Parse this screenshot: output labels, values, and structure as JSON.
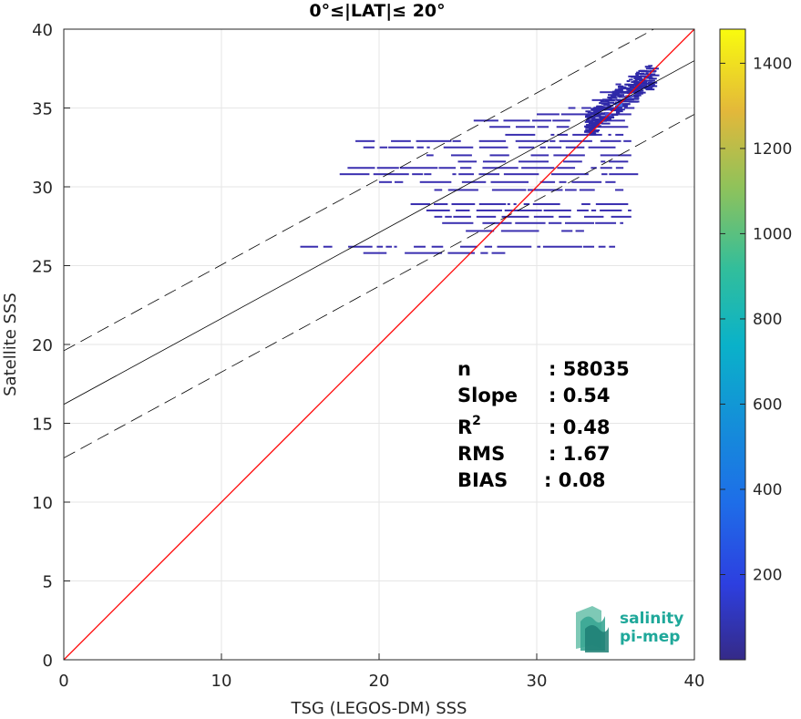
{
  "chart_data": {
    "type": "heatmap",
    "title": "0°≤|LAT|≤ 20°",
    "xlabel": "TSG (LEGOS-DM) SSS",
    "ylabel": "Satellite SSS",
    "xlim": [
      0,
      40
    ],
    "ylim": [
      0,
      40
    ],
    "xticks": [
      "0",
      "10",
      "20",
      "30",
      "40"
    ],
    "yticks": [
      "0",
      "5",
      "10",
      "15",
      "20",
      "25",
      "30",
      "35",
      "40"
    ],
    "grid": true,
    "colorbar": {
      "colormap": "parula",
      "range": [
        0,
        1480
      ],
      "ticks": [
        "200",
        "400",
        "600",
        "800",
        "1000",
        "1200",
        "1400"
      ]
    },
    "lines": [
      {
        "name": "identity",
        "color": "#ff0000",
        "style": "solid",
        "points": [
          [
            0,
            0
          ],
          [
            40,
            40
          ]
        ]
      },
      {
        "name": "regression",
        "color": "#000000",
        "style": "solid",
        "points": [
          [
            0,
            16.2
          ],
          [
            40,
            38.0
          ]
        ]
      },
      {
        "name": "regression-upper",
        "color": "#000000",
        "style": "dashed",
        "points": [
          [
            0,
            19.6
          ],
          [
            40,
            41.4
          ]
        ]
      },
      {
        "name": "regression-lower",
        "color": "#000000",
        "style": "dashed",
        "points": [
          [
            0,
            12.8
          ],
          [
            40,
            34.6
          ]
        ]
      }
    ],
    "density_rows": [
      {
        "y": 37.0,
        "x_from": 35.8,
        "x_to": 37.3
      },
      {
        "y": 36.5,
        "x_from": 35.0,
        "x_to": 37.0
      },
      {
        "y": 36.0,
        "x_from": 34.0,
        "x_to": 36.7
      },
      {
        "y": 35.5,
        "x_from": 33.5,
        "x_to": 36.4
      },
      {
        "y": 35.0,
        "x_from": 32.0,
        "x_to": 36.2
      },
      {
        "y": 34.6,
        "x_from": 30.0,
        "x_to": 36.0
      },
      {
        "y": 34.2,
        "x_from": 26.0,
        "x_to": 35.8
      },
      {
        "y": 33.8,
        "x_from": 27.0,
        "x_to": 35.8
      },
      {
        "y": 33.3,
        "x_from": 28.0,
        "x_to": 35.5
      },
      {
        "y": 32.9,
        "x_from": 18.5,
        "x_to": 36.0
      },
      {
        "y": 32.5,
        "x_from": 19.0,
        "x_to": 35.0
      },
      {
        "y": 32.0,
        "x_from": 23.0,
        "x_to": 36.0
      },
      {
        "y": 31.6,
        "x_from": 25.0,
        "x_to": 35.8
      },
      {
        "y": 31.2,
        "x_from": 18.0,
        "x_to": 35.5
      },
      {
        "y": 30.8,
        "x_from": 17.5,
        "x_to": 36.5
      },
      {
        "y": 30.3,
        "x_from": 20.0,
        "x_to": 35.0
      },
      {
        "y": 29.8,
        "x_from": 23.5,
        "x_to": 35.5
      },
      {
        "y": 28.9,
        "x_from": 22.0,
        "x_to": 35.8
      },
      {
        "y": 28.5,
        "x_from": 23.0,
        "x_to": 36.0
      },
      {
        "y": 28.1,
        "x_from": 23.5,
        "x_to": 36.0
      },
      {
        "y": 27.7,
        "x_from": 24.0,
        "x_to": 35.5
      },
      {
        "y": 27.2,
        "x_from": 25.5,
        "x_to": 33.0
      },
      {
        "y": 26.2,
        "x_from": 15.0,
        "x_to": 35.0
      },
      {
        "y": 25.8,
        "x_from": 19.0,
        "x_to": 28.0
      }
    ],
    "hot_spots": [
      {
        "x": 35.2,
        "y": 35.2,
        "density": 600
      },
      {
        "x": 35.8,
        "y": 35.7,
        "density": 400
      },
      {
        "x": 34.5,
        "y": 34.6,
        "density": 320
      }
    ],
    "stats": [
      {
        "label": "n",
        "value": ": 58035"
      },
      {
        "label": "Slope",
        "value": ": 0.54"
      },
      {
        "label": "R2",
        "value": ": 0.48"
      },
      {
        "label": "RMS",
        "value": ": 1.67"
      },
      {
        "label": "BIAS",
        "value": ": 0.08"
      }
    ]
  },
  "logo": {
    "line1": "salinity",
    "line2": "pi-mep"
  },
  "colors": {
    "identity": "#ff0000",
    "regression": "#000000",
    "grid": "#e6e6e6",
    "low_density": "#3a2fb0",
    "logo": "#1fa89a"
  }
}
